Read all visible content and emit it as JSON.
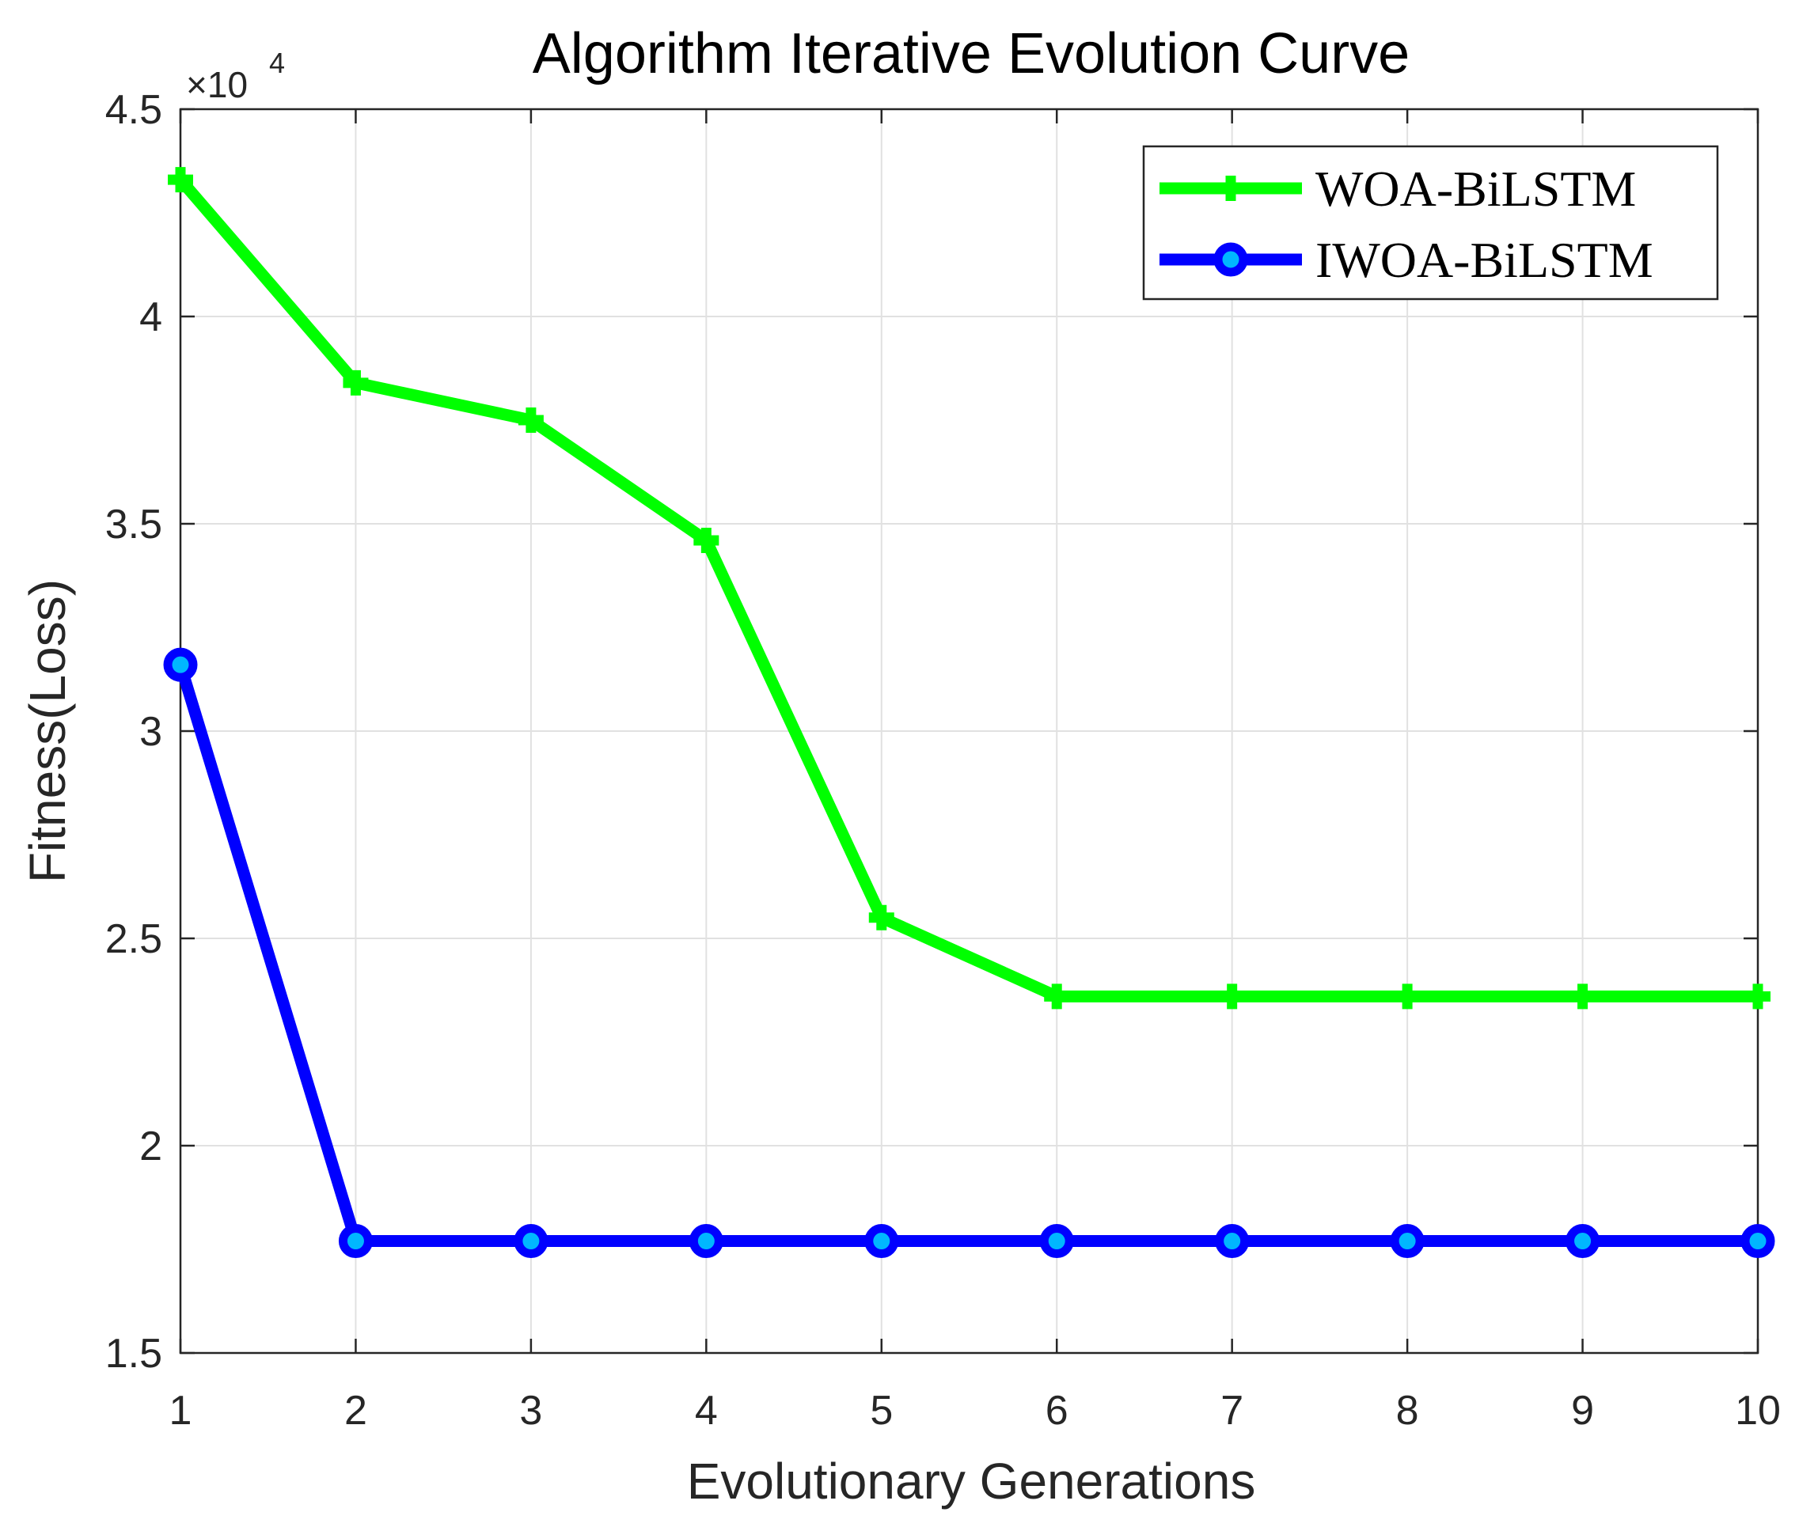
{
  "chart_data": {
    "type": "line",
    "title": "Algorithm Iterative Evolution Curve",
    "xlabel": "Evolutionary Generations",
    "ylabel": "Fitness(Loss)",
    "y_exponent_prefix": "×10",
    "y_exponent_power": "4",
    "x": [
      1,
      2,
      3,
      4,
      5,
      6,
      7,
      8,
      9,
      10
    ],
    "xlim": [
      1,
      10
    ],
    "ylim": [
      1.5,
      4.5
    ],
    "x_ticks": [
      1,
      2,
      3,
      4,
      5,
      6,
      7,
      8,
      9,
      10
    ],
    "x_tick_labels": [
      "1",
      "2",
      "3",
      "4",
      "5",
      "6",
      "7",
      "8",
      "9",
      "10"
    ],
    "y_ticks": [
      1.5,
      2,
      2.5,
      3,
      3.5,
      4,
      4.5
    ],
    "y_tick_labels": [
      "1.5",
      "2",
      "2.5",
      "3",
      "3.5",
      "4",
      "4.5"
    ],
    "grid": true,
    "legend_position": "top-right",
    "series": [
      {
        "name": "WOA-BiLSTM",
        "color": "#00ff00",
        "marker": "plus",
        "values": [
          4.33,
          3.84,
          3.75,
          3.46,
          2.55,
          2.36,
          2.36,
          2.36,
          2.36,
          2.36
        ]
      },
      {
        "name": "IWOA-BiLSTM",
        "color": "#0000ff",
        "marker": "circle",
        "values": [
          3.16,
          1.77,
          1.77,
          1.77,
          1.77,
          1.77,
          1.77,
          1.77,
          1.77,
          1.77
        ]
      }
    ]
  }
}
